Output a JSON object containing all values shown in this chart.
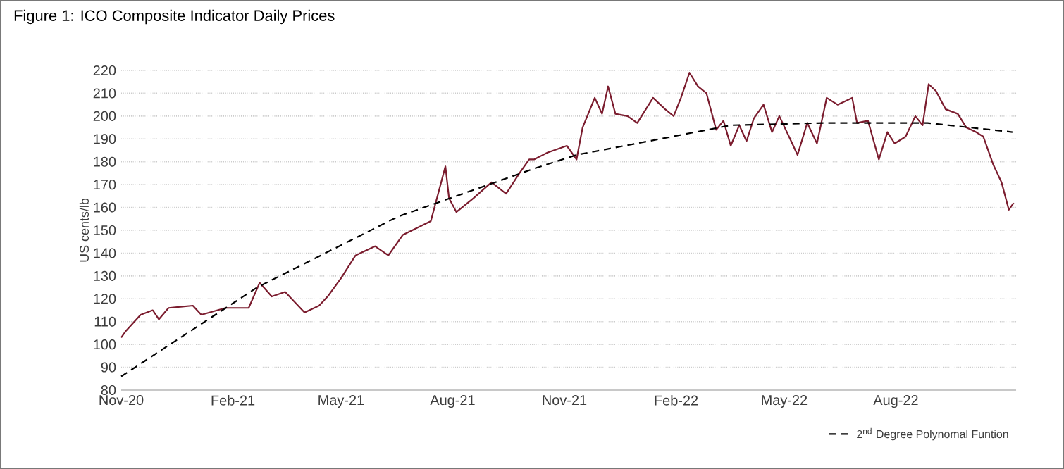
{
  "chart_data": {
    "type": "line",
    "title": "Figure 1: ICO Composite Indicator Daily Prices",
    "ylabel": "US cents/lb",
    "xlim": [
      "2020-11-01",
      "2022-11-08"
    ],
    "ylim": [
      80,
      220
    ],
    "xticks": [
      {
        "value": "2020-11-01",
        "label": "Nov-20"
      },
      {
        "value": "2021-02-01",
        "label": "Feb-21"
      },
      {
        "value": "2021-05-01",
        "label": "May-21"
      },
      {
        "value": "2021-08-01",
        "label": "Aug-21"
      },
      {
        "value": "2021-11-01",
        "label": "Nov-21"
      },
      {
        "value": "2022-02-01",
        "label": "Feb-22"
      },
      {
        "value": "2022-05-01",
        "label": "May-22"
      },
      {
        "value": "2022-08-01",
        "label": "Aug-22"
      }
    ],
    "yticks": [
      80,
      90,
      100,
      110,
      120,
      130,
      140,
      150,
      160,
      170,
      180,
      190,
      200,
      210,
      220
    ],
    "grid": "y",
    "legend": "bottom right",
    "series": [
      {
        "color": "#7b1c2e",
        "line_style": "solid",
        "x": [
          "2020-11-01",
          "2020-11-05",
          "2020-11-17",
          "2020-11-27",
          "2020-12-02",
          "2020-12-10",
          "2020-12-30",
          "2021-01-06",
          "2021-01-26",
          "2021-02-14",
          "2021-02-23",
          "2021-03-05",
          "2021-03-16",
          "2021-04-01",
          "2021-04-13",
          "2021-04-20",
          "2021-05-01",
          "2021-05-13",
          "2021-05-29",
          "2021-06-09",
          "2021-06-21",
          "2021-07-14",
          "2021-07-26",
          "2021-07-29",
          "2021-08-04",
          "2021-08-18",
          "2021-09-02",
          "2021-09-14",
          "2021-09-25",
          "2021-10-03",
          "2021-10-07",
          "2021-10-18",
          "2021-11-03",
          "2021-11-11",
          "2021-11-16",
          "2021-11-26",
          "2021-12-02",
          "2021-12-07",
          "2021-12-13",
          "2021-12-23",
          "2021-12-31",
          "2022-01-13",
          "2022-01-23",
          "2022-01-30",
          "2022-02-05",
          "2022-02-12",
          "2022-02-19",
          "2022-02-26",
          "2022-03-06",
          "2022-03-12",
          "2022-03-18",
          "2022-03-25",
          "2022-03-31",
          "2022-04-06",
          "2022-04-14",
          "2022-04-21",
          "2022-04-27",
          "2022-05-05",
          "2022-05-12",
          "2022-05-20",
          "2022-05-28",
          "2022-06-05",
          "2022-06-14",
          "2022-06-26",
          "2022-06-30",
          "2022-07-09",
          "2022-07-18",
          "2022-07-25",
          "2022-07-31",
          "2022-08-09",
          "2022-08-17",
          "2022-08-23",
          "2022-08-28",
          "2022-09-03",
          "2022-09-11",
          "2022-09-21",
          "2022-09-28",
          "2022-10-06",
          "2022-10-12",
          "2022-10-20",
          "2022-10-27",
          "2022-11-02",
          "2022-11-06"
        ],
        "values": [
          103,
          106,
          113,
          115,
          111,
          116,
          117,
          113,
          116,
          116,
          127,
          121,
          123,
          114,
          117,
          121,
          129,
          139,
          143,
          139,
          148,
          154,
          178,
          164,
          158,
          164,
          171,
          166,
          175,
          181,
          181,
          184,
          187,
          181,
          195,
          208,
          201,
          213,
          201,
          200,
          197,
          208,
          203,
          200,
          208,
          219,
          213,
          210,
          194,
          198,
          187,
          196,
          189,
          199,
          205,
          193,
          200,
          191,
          183,
          197,
          188,
          208,
          205,
          208,
          197,
          198,
          181,
          193,
          188,
          191,
          200,
          196,
          214,
          211,
          203,
          201,
          195,
          193,
          191,
          179,
          171,
          159,
          162
        ]
      },
      {
        "name": "2$^{nd}$ Degree Polynomal Funtion",
        "color": "#000000",
        "line_style": "dashed",
        "x": [
          "2020-11-01",
          "2021-02-21",
          "2021-06-17",
          "2021-10-07",
          "2021-11-11",
          "2022-01-19",
          "2022-03-18",
          "2022-06-03",
          "2022-08-27",
          "2022-11-05"
        ],
        "values": [
          86,
          125,
          156,
          177,
          183,
          190,
          196,
          197,
          197,
          193
        ]
      }
    ]
  }
}
